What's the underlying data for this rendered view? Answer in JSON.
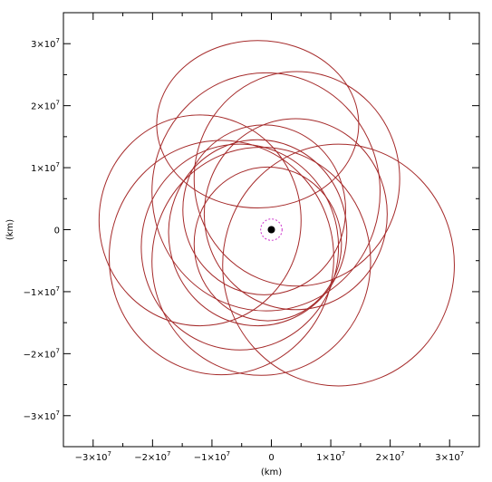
{
  "chart_data": {
    "type": "scatter",
    "title": "",
    "xlabel": "(km)",
    "ylabel": "(km)",
    "xlim": [
      -35000000,
      35000000
    ],
    "ylim": [
      -35000000,
      35000000
    ],
    "grid": false,
    "colors": {
      "orbit": "#a52a2a",
      "center_ring": "#cc33cc",
      "center_dot": "#000000",
      "axes": "#000000"
    },
    "x_ticks": [
      {
        "value": -30000000,
        "mantissa": "−3×10",
        "exp": "7"
      },
      {
        "value": -20000000,
        "mantissa": "−2×10",
        "exp": "7"
      },
      {
        "value": -10000000,
        "mantissa": "−1×10",
        "exp": "7"
      },
      {
        "value": 0,
        "mantissa": "0",
        "exp": ""
      },
      {
        "value": 10000000,
        "mantissa": "1×10",
        "exp": "7"
      },
      {
        "value": 20000000,
        "mantissa": "2×10",
        "exp": "7"
      },
      {
        "value": 30000000,
        "mantissa": "3×10",
        "exp": "7"
      }
    ],
    "y_ticks": [
      {
        "value": 30000000,
        "mantissa": "3×10",
        "exp": "7"
      },
      {
        "value": 20000000,
        "mantissa": "2×10",
        "exp": "7"
      },
      {
        "value": 10000000,
        "mantissa": "1×10",
        "exp": "7"
      },
      {
        "value": 0,
        "mantissa": "0",
        "exp": ""
      },
      {
        "value": -10000000,
        "mantissa": "−1×10",
        "exp": "7"
      },
      {
        "value": -20000000,
        "mantissa": "−2×10",
        "exp": "7"
      },
      {
        "value": -30000000,
        "mantissa": "−3×10",
        "exp": "7"
      }
    ],
    "center_body": {
      "x": 0,
      "y": 0,
      "ring_radius": 1800000
    },
    "orbits": [
      {
        "cx": -2300000,
        "cy": 17000000,
        "rx": 17000000,
        "ry": 13500000
      },
      {
        "cx": 4300000,
        "cy": 8200000,
        "rx": 17300000,
        "ry": 17300000
      },
      {
        "cx": -12000000,
        "cy": 1500000,
        "rx": 17000000,
        "ry": 17000000
      },
      {
        "cx": -5300000,
        "cy": -2800000,
        "rx": 16600000,
        "ry": 16600000
      },
      {
        "cx": -2300000,
        "cy": -500000,
        "rx": 15000000,
        "ry": 15000000
      },
      {
        "cx": -900000,
        "cy": 6100000,
        "rx": 19200000,
        "ry": 19200000
      },
      {
        "cx": 4100000,
        "cy": 2500000,
        "rx": 15400000,
        "ry": 15400000
      },
      {
        "cx": -1200000,
        "cy": 3200000,
        "rx": 13700000,
        "ry": 13700000
      },
      {
        "cx": 11300000,
        "cy": -5700000,
        "rx": 19500000,
        "ry": 19500000
      },
      {
        "cx": -1700000,
        "cy": -5100000,
        "rx": 18400000,
        "ry": 18400000
      },
      {
        "cx": -8400000,
        "cy": -4500000,
        "rx": 18900000,
        "ry": 18900000
      },
      {
        "cx": -600000,
        "cy": -2300000,
        "rx": 12400000,
        "ry": 12400000
      }
    ]
  }
}
